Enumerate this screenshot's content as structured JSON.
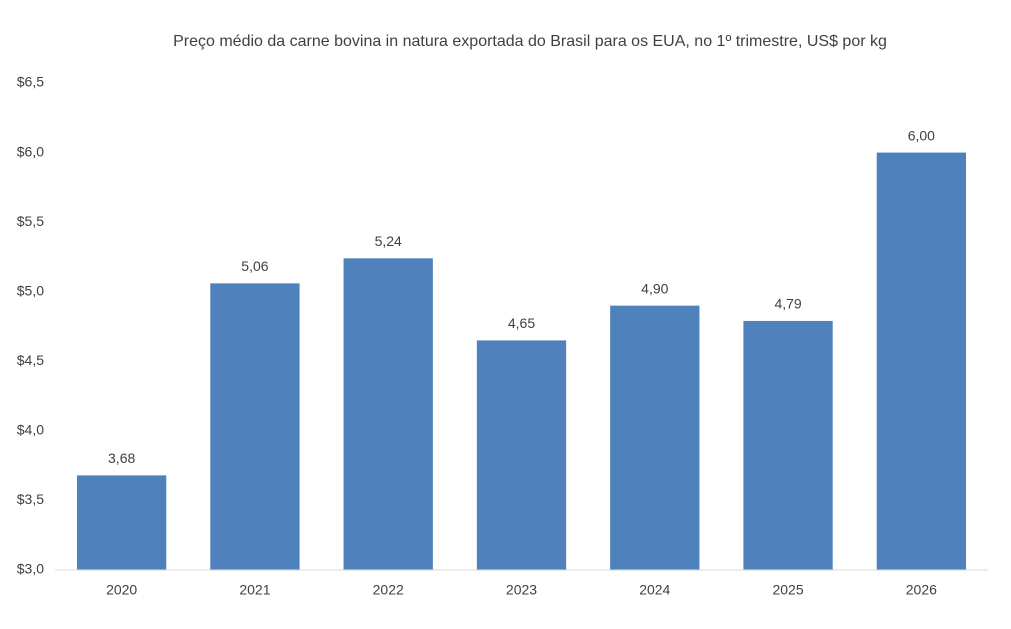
{
  "chart_data": {
    "type": "bar",
    "title": "Preço médio da carne bovina in natura exportada do Brasil para os EUA, no 1º trimestre, US$ por kg",
    "categories": [
      "2020",
      "2021",
      "2022",
      "2023",
      "2024",
      "2025",
      "2026"
    ],
    "values": [
      3.68,
      5.06,
      5.24,
      4.65,
      4.9,
      4.79,
      6.0
    ],
    "value_labels": [
      "3,68",
      "5,06",
      "5,24",
      "4,65",
      "4,90",
      "4,79",
      "6,00"
    ],
    "color": "#4f81bd",
    "ylim": [
      3.0,
      6.5
    ],
    "yticks": [
      {
        "value": 3.0,
        "label": "$3,0"
      },
      {
        "value": 3.5,
        "label": "$3,5"
      },
      {
        "value": 4.0,
        "label": "$4,0"
      },
      {
        "value": 4.5,
        "label": "$4,5"
      },
      {
        "value": 5.0,
        "label": "$5,0"
      },
      {
        "value": 5.5,
        "label": "$5,5"
      },
      {
        "value": 6.0,
        "label": "$6,0"
      },
      {
        "value": 6.5,
        "label": "$6,5"
      }
    ],
    "grid": false
  }
}
